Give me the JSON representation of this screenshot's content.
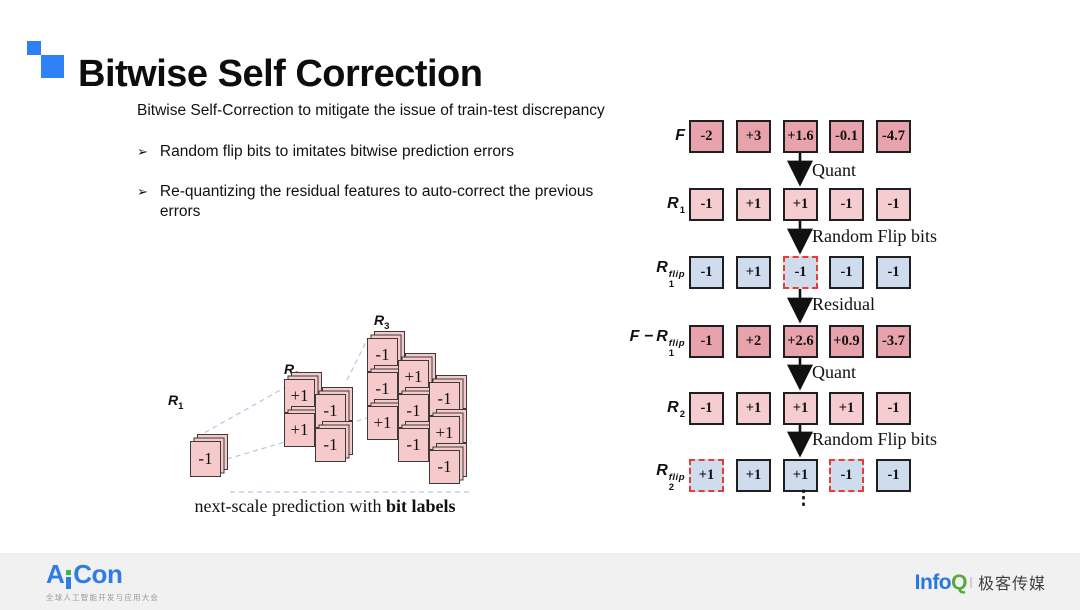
{
  "slide": {
    "title": "Bitwise Self Correction"
  },
  "content": {
    "intro": "Bitwise Self-Correction to mitigate the issue of train-test discrepancy",
    "bullet_glyph": "➢",
    "bullets": [
      "Random flip bits to imitates bitwise prediction errors",
      "Re-quantizing the residual features to auto-correct the previous errors"
    ]
  },
  "left_diagram": {
    "caption_normal": "next-scale prediction with ",
    "caption_bold": "bit labels",
    "matrices": [
      {
        "base": "R",
        "sub": "1",
        "columns": [
          [
            "-1"
          ]
        ]
      },
      {
        "base": "R",
        "sub": "2",
        "columns": [
          [
            "+1",
            "+1"
          ],
          [
            "-1",
            "-1"
          ]
        ]
      },
      {
        "base": "R",
        "sub": "3",
        "columns": [
          [
            "-1",
            "-1",
            "+1"
          ],
          [
            "+1",
            "-1",
            "-1"
          ],
          [
            "-1",
            "+1",
            "-1"
          ]
        ]
      }
    ]
  },
  "flow_diagram": {
    "rows": [
      {
        "prefix": "",
        "base": "F",
        "sub": "",
        "sup": "",
        "palette": "rose",
        "values": [
          "-2",
          "+3",
          "+1.6",
          "-0.1",
          "-4.7"
        ],
        "flipped": []
      },
      {
        "prefix": "",
        "base": "R",
        "sub": "1",
        "sup": "",
        "palette": "pink",
        "values": [
          "-1",
          "+1",
          "+1",
          "-1",
          "-1"
        ],
        "flipped": []
      },
      {
        "prefix": "",
        "base": "R",
        "sub": "1",
        "sup": "flip",
        "palette": "blue",
        "values": [
          "-1",
          "+1",
          "-1",
          "-1",
          "-1"
        ],
        "flipped": [
          2
        ]
      },
      {
        "prefix": "F −",
        "base": "R",
        "sub": "1",
        "sup": "flip",
        "palette": "rose",
        "values": [
          "-1",
          "+2",
          "+2.6",
          "+0.9",
          "-3.7"
        ],
        "flipped": []
      },
      {
        "prefix": "",
        "base": "R",
        "sub": "2",
        "sup": "",
        "palette": "pink",
        "values": [
          "-1",
          "+1",
          "+1",
          "+1",
          "-1"
        ],
        "flipped": []
      },
      {
        "prefix": "",
        "base": "R",
        "sub": "2",
        "sup": "flip",
        "palette": "blue",
        "values": [
          "+1",
          "+1",
          "+1",
          "-1",
          "-1"
        ],
        "flipped": [
          0,
          3
        ]
      }
    ],
    "arrow_labels": [
      "Quant",
      "Random Flip bits",
      "Residual",
      "Quant",
      "Random Flip bits"
    ],
    "ellipsis": "⋮",
    "palettes": {
      "rose": "#e7a2ac",
      "pink": "#f5cdd1",
      "blue": "#cfdcee"
    }
  },
  "footer": {
    "aicon": {
      "word_start": "A",
      "word_end": "Con",
      "tagline": "全球人工智能开发与应用大会"
    },
    "infoq": {
      "info": "Info",
      "q": "Q",
      "media": "极客传媒"
    }
  },
  "colors": {
    "accent_blue": "#2e7ff2",
    "accent_blue2": "#2f82f5",
    "flip_border": "#ef3b2d",
    "aicon_blue": "#2e7ce8",
    "aicon_green": "#3db54a",
    "infoq_blue": "#2777e0",
    "infoq_green": "#54a93f",
    "footer_bg": "#f1f1f1"
  }
}
